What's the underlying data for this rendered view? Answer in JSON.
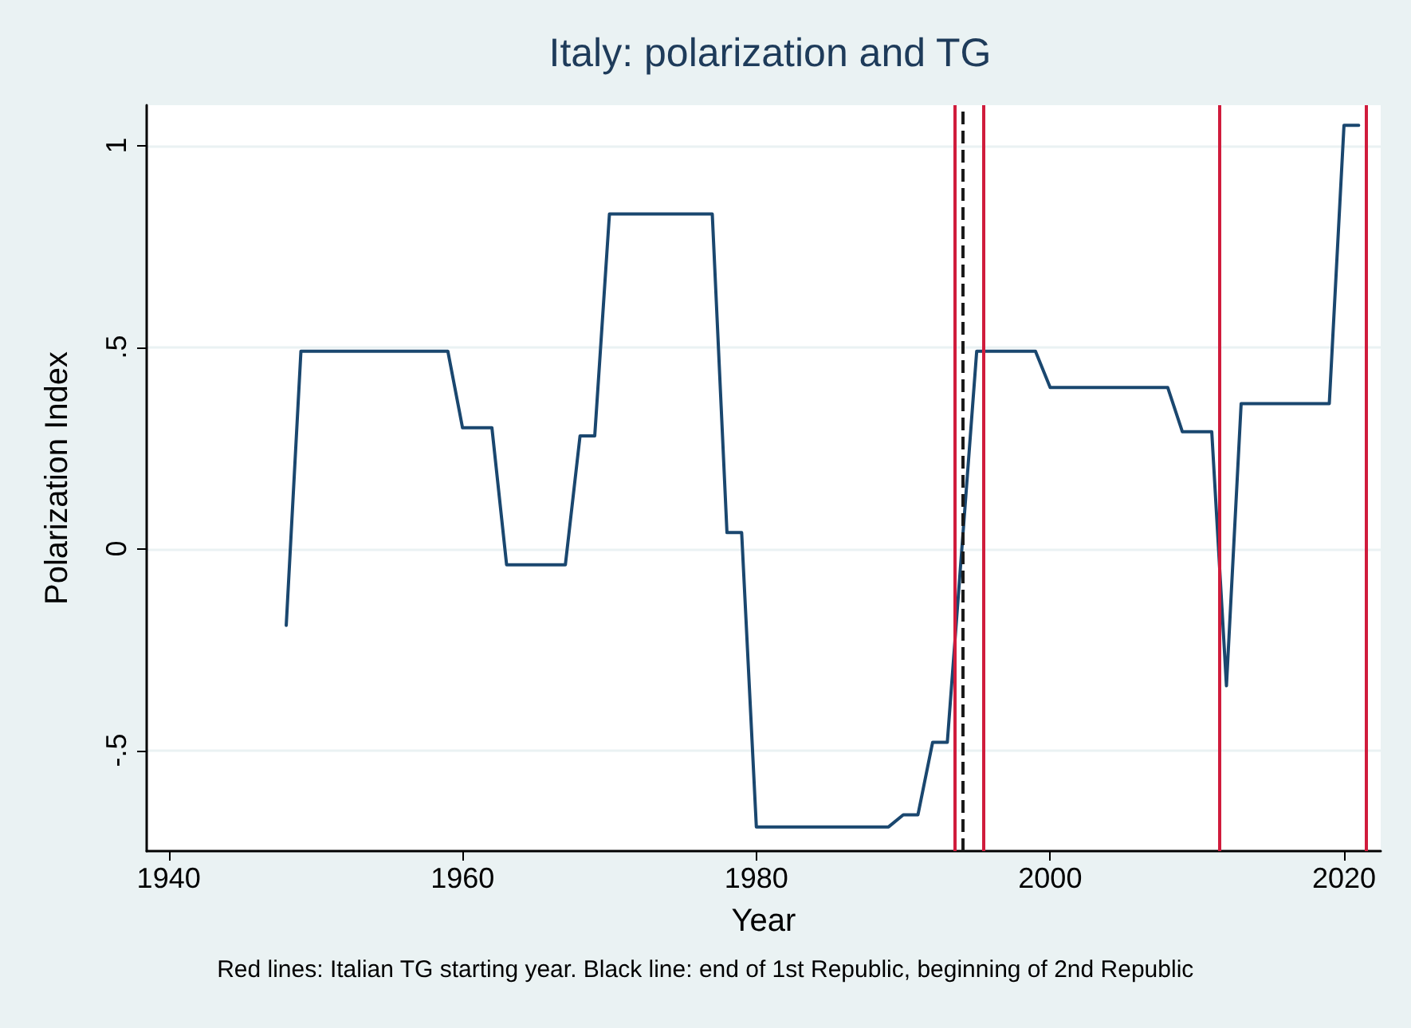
{
  "chart_data": {
    "type": "line",
    "title": "Italy: polarization and TG",
    "xlabel": "Year",
    "ylabel": "Polarization Index",
    "annotations": [
      "Red lines: Italian TG starting year. Black line: end of 1st Republic, beginning of 2nd Republic"
    ],
    "x": [
      1948,
      1949,
      1959,
      1960,
      1962,
      1963,
      1967,
      1968,
      1969,
      1970,
      1977,
      1978,
      1979,
      1980,
      1989,
      1990,
      1991,
      1992,
      1993,
      1995,
      1999,
      2000,
      2008,
      2009,
      2011,
      2012,
      2013,
      2019,
      2020,
      2021
    ],
    "series": [
      {
        "color": "#1a476f",
        "values": [
          -0.19,
          0.49,
          0.49,
          0.3,
          0.3,
          -0.04,
          -0.04,
          0.28,
          0.28,
          0.83,
          0.83,
          0.04,
          0.04,
          -0.69,
          -0.69,
          -0.66,
          -0.66,
          -0.48,
          -0.48,
          0.49,
          0.49,
          0.4,
          0.4,
          0.29,
          0.29,
          -0.34,
          0.36,
          0.36,
          1.05,
          1.05
        ]
      }
    ],
    "xlim": [
      1938.5,
      2022.5
    ],
    "xticks": [
      1940,
      1960,
      1980,
      2000,
      2020
    ],
    "ylim": [
      -0.75,
      1.1
    ],
    "yticks": [
      {
        "value": -0.5,
        "label": "-.5"
      },
      0,
      {
        "value": 0.5,
        "label": ".5"
      },
      1
    ],
    "ref_lines": [
      {
        "axis": "x",
        "value": 1993.5,
        "color": "#d01c3c",
        "line_style": "solid"
      },
      {
        "axis": "x",
        "value": 1994,
        "color": "#1a1a1a",
        "line_style": "dashed"
      },
      {
        "axis": "x",
        "value": 1995.5,
        "color": "#d01c3c",
        "line_style": "solid"
      },
      {
        "axis": "x",
        "value": 2011.5,
        "color": "#d01c3c",
        "line_style": "solid"
      },
      {
        "axis": "x",
        "value": 2021.5,
        "color": "#d01c3c",
        "line_style": "solid"
      }
    ],
    "grid": "y",
    "marker": "none",
    "line_style": "solid"
  }
}
